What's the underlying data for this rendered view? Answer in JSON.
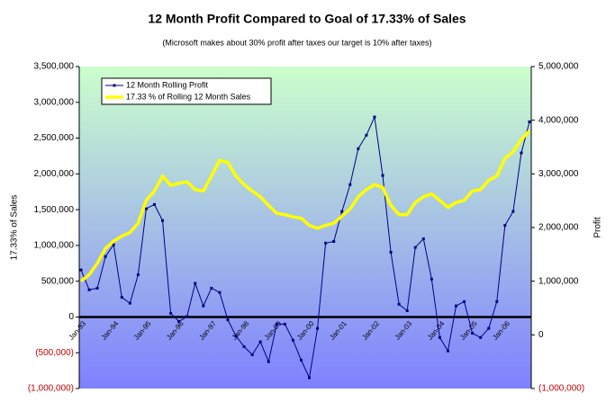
{
  "chart_data": {
    "type": "line",
    "title": "12 Month Profit Compared to Goal of 17.33%  of  Sales",
    "subtitle": "(Microsoft makes about 30% profit after taxes our target is 10% after taxes)",
    "y_label": "17.33% of Sales",
    "y2_label": "Profit",
    "categories": [
      "Jan-93",
      null,
      null,
      null,
      "Jan-94",
      null,
      null,
      null,
      "Jan-95",
      null,
      null,
      null,
      "Jan-96",
      null,
      null,
      null,
      "Jan-97",
      null,
      null,
      null,
      "Jan-98",
      null,
      null,
      null,
      "Jan-99",
      null,
      null,
      null,
      "Jan-00",
      null,
      null,
      null,
      "Jan-01",
      null,
      null,
      null,
      "Jan-02",
      null,
      null,
      null,
      "Jan-03",
      null,
      null,
      null,
      "Jan-04",
      null,
      null,
      null,
      "Jan-05",
      null,
      null,
      null,
      "Jan-06",
      null,
      null,
      null
    ],
    "series": [
      {
        "name": "12 Month Rolling Profit",
        "color": "#000080",
        "axis": "y2",
        "values": [
          1210000,
          840000,
          870000,
          1460000,
          1680000,
          700000,
          590000,
          1120000,
          2350000,
          2430000,
          2130000,
          400000,
          250000,
          340000,
          960000,
          540000,
          870000,
          790000,
          280000,
          -20000,
          -220000,
          -370000,
          -130000,
          -500000,
          200000,
          200000,
          -100000,
          -470000,
          -800000,
          120000,
          1710000,
          1740000,
          2300000,
          2800000,
          3470000,
          3720000,
          4060000,
          2970000,
          1540000,
          570000,
          450000,
          1630000,
          1790000,
          1040000,
          -50000,
          -300000,
          540000,
          620000,
          30000,
          -50000,
          120000,
          620000,
          2040000,
          2300000,
          3390000,
          3970000
        ]
      },
      {
        "name": "17.33 % of Rolling 12 Month Sales",
        "color": "#ffff00",
        "values": [
          500000,
          590000,
          750000,
          960000,
          1060000,
          1130000,
          1180000,
          1310000,
          1630000,
          1760000,
          1970000,
          1840000,
          1870000,
          1890000,
          1780000,
          1760000,
          1970000,
          2190000,
          2160000,
          1970000,
          1850000,
          1760000,
          1680000,
          1560000,
          1450000,
          1430000,
          1400000,
          1380000,
          1280000,
          1240000,
          1280000,
          1310000,
          1410000,
          1510000,
          1680000,
          1780000,
          1850000,
          1810000,
          1560000,
          1430000,
          1430000,
          1600000,
          1680000,
          1720000,
          1630000,
          1530000,
          1600000,
          1630000,
          1760000,
          1780000,
          1910000,
          1970000,
          2220000,
          2310000,
          2480000,
          2600000
        ]
      }
    ],
    "ylim": [
      -1000000,
      3500000
    ],
    "yticks": [
      {
        "value": -1000000,
        "label": "(1,000,000)"
      },
      {
        "value": -500000,
        "label": "(500,000)"
      },
      0,
      {
        "value": 500000,
        "label": "500,000"
      },
      {
        "value": 1000000,
        "label": "1,000,000"
      },
      {
        "value": 1500000,
        "label": "1,500,000"
      },
      {
        "value": 2000000,
        "label": "2,000,000"
      },
      {
        "value": 2500000,
        "label": "2,500,000"
      },
      {
        "value": 3000000,
        "label": "3,000,000"
      },
      {
        "value": 3500000,
        "label": "3,500,000"
      }
    ],
    "y2lim": [
      -1000000,
      5000000
    ],
    "y2ticks": [
      {
        "value": -1000000,
        "label": "(1,000,000)"
      },
      0,
      {
        "value": 1000000,
        "label": "1,000,000"
      },
      {
        "value": 2000000,
        "label": "2,000,000"
      },
      {
        "value": 3000000,
        "label": "3,000,000"
      },
      {
        "value": 4000000,
        "label": "4,000,000"
      },
      {
        "value": 5000000,
        "label": "5,000,000"
      }
    ],
    "legend": "upper left"
  }
}
